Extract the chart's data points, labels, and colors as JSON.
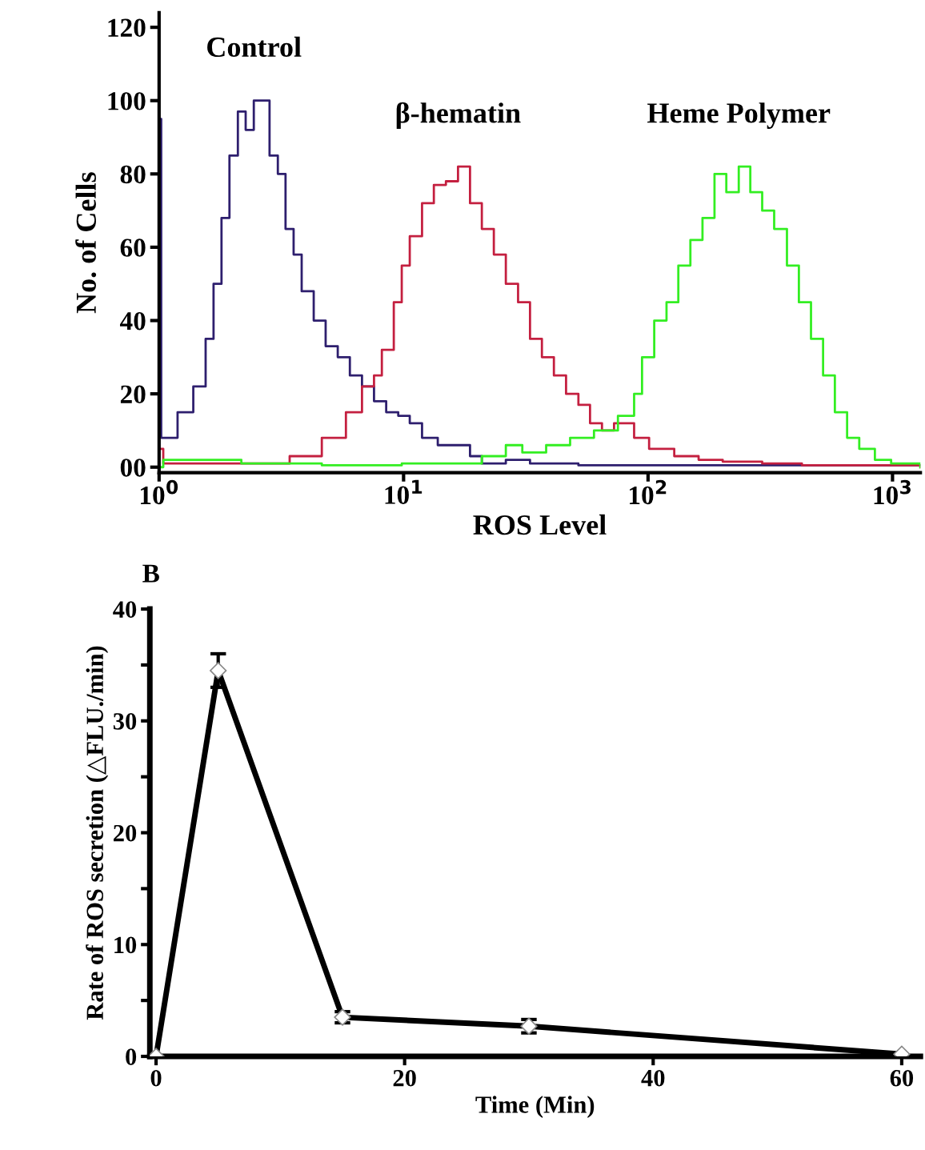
{
  "chart_data": [
    {
      "type": "step",
      "xlabel": "ROS Level",
      "ylabel": "No. of Cells",
      "log": "x",
      "xlim": [
        1,
        1300
      ],
      "ylim": [
        -1.5,
        124
      ],
      "xticks": [
        {
          "value": 1,
          "label": "10$^{0}$"
        },
        {
          "value": 10,
          "label": "10$^{1}$"
        },
        {
          "value": 100,
          "label": "10$^{2}$"
        },
        {
          "value": 1000,
          "label": "10$^{3}$"
        }
      ],
      "yticks": [
        {
          "value": 0,
          "label": "00"
        },
        20,
        40,
        60,
        80,
        100,
        120
      ],
      "grid": false,
      "legend": false,
      "series": [
        {
          "name": "Control",
          "color": "#2e1f6e",
          "x": [
            1.0,
            1.02,
            1.06,
            1.19,
            1.38,
            1.55,
            1.67,
            1.8,
            1.94,
            2.1,
            2.26,
            2.44,
            2.63,
            2.83,
            3.06,
            3.29,
            3.55,
            3.83,
            4.29,
            4.8,
            5.38,
            6.03,
            6.76,
            7.57,
            8.49,
            9.51,
            10.6,
            11.9,
            13.8,
            16.7,
            18.7,
            20.9,
            26.2,
            32.9,
            44.5,
            51.9,
            94.5,
            1300
          ],
          "values": [
            95,
            8,
            8,
            15,
            22,
            35,
            50,
            68,
            85,
            97,
            92,
            100,
            100,
            85,
            80,
            65,
            58,
            48,
            40,
            33,
            30,
            25,
            22,
            18,
            15,
            14,
            12,
            8,
            6,
            6,
            3,
            1,
            2,
            1,
            1,
            0.5,
            0.5,
            0.5
          ]
        },
        {
          "name": "β-hematin",
          "color": "#c42040",
          "x": [
            1.0,
            1.04,
            2.17,
            2.73,
            3.42,
            4.63,
            5.81,
            6.76,
            7.57,
            8.15,
            9.12,
            9.83,
            10.6,
            11.9,
            13.3,
            14.9,
            16.7,
            18.7,
            20.9,
            23.4,
            26.2,
            29.4,
            32.9,
            36.8,
            41.2,
            46.2,
            51.9,
            57.9,
            64.8,
            72.6,
            87.7,
            101,
            128,
            161,
            202,
            293,
            426,
            779,
            1300
          ],
          "values": [
            5,
            1,
            1,
            1,
            3,
            8,
            15,
            22,
            25,
            32,
            45,
            55,
            63,
            72,
            77,
            78,
            82,
            72,
            65,
            58,
            50,
            45,
            35,
            30,
            25,
            20,
            17,
            12,
            10,
            12,
            8,
            5,
            3,
            2,
            1.5,
            1,
            0.5,
            0.5,
            0
          ]
        },
        {
          "name": "Heme Polymer",
          "color": "#33ee22",
          "x": [
            1.0,
            1.04,
            2.17,
            4.63,
            9.83,
            15.5,
            20.9,
            26.2,
            30.6,
            38.3,
            48.0,
            60.1,
            75.3,
            87.7,
            94.5,
            106,
            119,
            133,
            149,
            167,
            187,
            209,
            235,
            262,
            293,
            328,
            370,
            414,
            464,
            520,
            581,
            652,
            731,
            847,
            987,
            1300
          ],
          "values": [
            0,
            2,
            1,
            0.5,
            1,
            1,
            3,
            6,
            4,
            6,
            8,
            10,
            14,
            20,
            30,
            40,
            45,
            55,
            62,
            68,
            80,
            75,
            82,
            75,
            70,
            65,
            55,
            45,
            35,
            25,
            15,
            8,
            5,
            2,
            1,
            0
          ]
        }
      ]
    },
    {
      "type": "line",
      "xlabel": "Time (Min)",
      "ylabel": "Rate of ROS secretion (△FLU./min)",
      "xlim": [
        -0.5,
        61.5
      ],
      "ylim": [
        0,
        40
      ],
      "xticks": [
        0,
        20,
        40,
        60
      ],
      "yticks": [
        0,
        {
          "value": 5,
          "label": null
        },
        10,
        {
          "value": 15,
          "label": null
        },
        20,
        {
          "value": 25,
          "label": null
        },
        30,
        {
          "value": 35,
          "label": null
        },
        40
      ],
      "grid": false,
      "marker": "diamond",
      "line_style": "solid",
      "annotations": [
        "B"
      ],
      "series": [
        {
          "color": "#000000",
          "x": [
            0,
            5,
            15,
            30,
            60
          ],
          "values": [
            0,
            34.5,
            3.5,
            2.7,
            0.2
          ],
          "errors": [
            null,
            1.5,
            0.5,
            0.6,
            null
          ]
        }
      ]
    }
  ]
}
